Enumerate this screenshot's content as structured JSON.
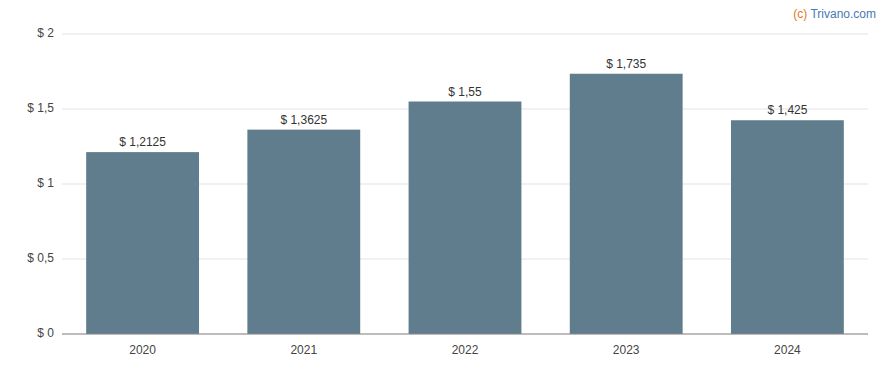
{
  "chart_data": {
    "type": "bar",
    "categories": [
      "2020",
      "2021",
      "2022",
      "2023",
      "2024"
    ],
    "values": [
      1.2125,
      1.3625,
      1.55,
      1.735,
      1.425
    ],
    "value_labels": [
      "$ 1,2125",
      "$ 1,3625",
      "$ 1,55",
      "$ 1,735",
      "$ 1,425"
    ],
    "data_labels": true,
    "color": "#5f7d8c",
    "ylim": [
      0,
      2.0
    ],
    "yticks": [
      {
        "value": 0,
        "label": "$ 0"
      },
      {
        "value": 0.5,
        "label": "$ 0,5"
      },
      {
        "value": 1.0,
        "label": "$ 1"
      },
      {
        "value": 1.5,
        "label": "$ 1,5"
      },
      {
        "value": 2.0,
        "label": "$ 2"
      }
    ],
    "grid": true,
    "annotations": [
      {
        "text": "(c) ",
        "color": "#e07820"
      },
      {
        "text": "Trivano.com",
        "color": "#4a7ab5"
      }
    ]
  }
}
